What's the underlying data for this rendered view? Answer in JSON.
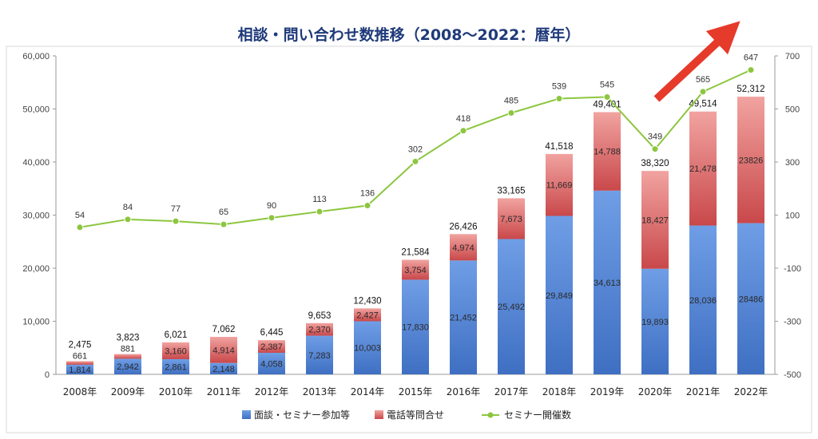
{
  "chart_data": {
    "type": "bar",
    "title": "相談・問い合わせ数推移（2008～2022：暦年）",
    "categories": [
      "2008年",
      "2009年",
      "2010年",
      "2011年",
      "2012年",
      "2013年",
      "2014年",
      "2015年",
      "2016年",
      "2017年",
      "2018年",
      "2019年",
      "2020年",
      "2021年",
      "2022年"
    ],
    "series": [
      {
        "name": "面談・セミナー参加等",
        "kind": "stacked-bar",
        "axis": "left",
        "color": "#5b8ad8",
        "values": [
          1814,
          2942,
          2861,
          2148,
          4058,
          7283,
          10003,
          17830,
          21452,
          25492,
          29849,
          34613,
          19893,
          28036,
          28486
        ],
        "labels": [
          "1,814",
          "2,942",
          "2,861",
          "2,148",
          "4,058",
          "7,283",
          "10,003",
          "17,830",
          "21,452",
          "25,492",
          "29,849",
          "34,613",
          "19,893",
          "28,036",
          "28486"
        ]
      },
      {
        "name": "電話等問合せ",
        "kind": "stacked-bar",
        "axis": "left",
        "color": "#d24c4c",
        "values": [
          661,
          881,
          3160,
          4914,
          2387,
          2370,
          2427,
          3754,
          4974,
          7673,
          11669,
          14788,
          18427,
          21478,
          23826
        ],
        "labels": [
          "661",
          "881",
          "3,160",
          "4,914",
          "2,387",
          "2,370",
          "2,427",
          "3,754",
          "4,974",
          "7,673",
          "11,669",
          "14,788",
          "18,427",
          "21,478",
          "23826"
        ]
      },
      {
        "name": "セミナー開催数",
        "kind": "line",
        "axis": "right",
        "color": "#8cc63f",
        "values": [
          54,
          84,
          77,
          65,
          90,
          113,
          136,
          302,
          418,
          485,
          539,
          545,
          349,
          565,
          647
        ],
        "labels": [
          "54",
          "84",
          "77",
          "65",
          "90",
          "113",
          "136",
          "302",
          "418",
          "485",
          "539",
          "545",
          "349",
          "565",
          "647"
        ]
      }
    ],
    "totals": [
      "2,475",
      "3,823",
      "6,021",
      "7,062",
      "6,445",
      "9,653",
      "12,430",
      "21,584",
      "26,426",
      "33,165",
      "41,518",
      "49,401",
      "38,320",
      "49,514",
      "52,312"
    ],
    "left_axis": {
      "ylim": [
        0,
        60000
      ],
      "ticks": [
        "0",
        "10,000",
        "20,000",
        "30,000",
        "40,000",
        "50,000",
        "60,000"
      ]
    },
    "right_axis": {
      "ylim": [
        -500,
        700
      ],
      "ticks": [
        "-500",
        "-300",
        "-100",
        "100",
        "300",
        "500",
        "700"
      ]
    },
    "legend": {
      "position": "bottom"
    },
    "grid": false,
    "annotation": "red upward arrow pointing to top-right"
  }
}
